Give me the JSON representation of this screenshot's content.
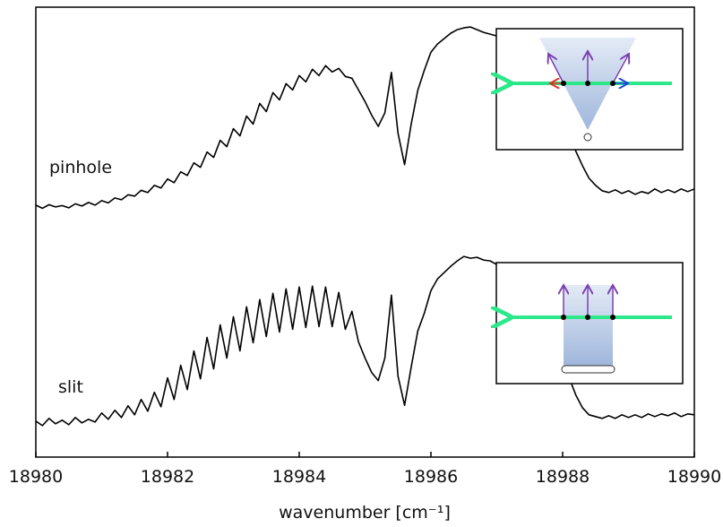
{
  "chart_data": {
    "type": "line",
    "x_label": "wavenumber [cm⁻¹]",
    "x": [
      18980,
      18980.1,
      18980.2,
      18980.3,
      18980.4,
      18980.5,
      18980.6,
      18980.7,
      18980.8,
      18980.9,
      18981,
      18981.1,
      18981.2,
      18981.3,
      18981.4,
      18981.5,
      18981.6,
      18981.7,
      18981.8,
      18981.9,
      18982,
      18982.1,
      18982.2,
      18982.3,
      18982.4,
      18982.5,
      18982.6,
      18982.7,
      18982.8,
      18982.9,
      18983,
      18983.1,
      18983.2,
      18983.3,
      18983.4,
      18983.5,
      18983.6,
      18983.7,
      18983.8,
      18983.9,
      18984,
      18984.1,
      18984.2,
      18984.3,
      18984.4,
      18984.5,
      18984.6,
      18984.7,
      18984.8,
      18984.9,
      18985,
      18985.1,
      18985.2,
      18985.3,
      18985.4,
      18985.5,
      18985.6,
      18985.7,
      18985.8,
      18985.9,
      18986,
      18986.1,
      18986.2,
      18986.3,
      18986.4,
      18986.5,
      18986.6,
      18986.7,
      18986.8,
      18986.9,
      18987,
      18987.1,
      18987.2,
      18987.3,
      18987.4,
      18987.5,
      18987.6,
      18987.7,
      18987.8,
      18987.9,
      18988,
      18988.1,
      18988.2,
      18988.3,
      18988.4,
      18988.5,
      18988.6,
      18988.7,
      18988.8,
      18988.9,
      18989,
      18989.1,
      18989.2,
      18989.3,
      18989.4,
      18989.5,
      18989.6,
      18989.7,
      18989.8,
      18989.9,
      18990
    ],
    "series": [
      {
        "name": "pinhole",
        "color": "#000000",
        "values": [
          56.0,
          55.3,
          56.1,
          55.6,
          55.9,
          55.4,
          56.3,
          55.8,
          56.6,
          56.0,
          57.0,
          56.5,
          57.6,
          57.2,
          58.3,
          58.0,
          59.3,
          58.8,
          60.4,
          59.8,
          61.8,
          61.0,
          63.4,
          62.6,
          65.4,
          64.4,
          67.8,
          66.6,
          70.4,
          69.0,
          73.0,
          71.4,
          75.8,
          74.0,
          78.6,
          76.8,
          81.0,
          79.4,
          83.0,
          81.6,
          84.8,
          83.4,
          86.2,
          84.8,
          87.0,
          85.6,
          86.4,
          84.6,
          84.2,
          81.6,
          79.0,
          76.0,
          73.5,
          76.5,
          85.5,
          72.0,
          65.0,
          74.0,
          81.5,
          86.0,
          90.0,
          91.8,
          93.0,
          94.2,
          95.0,
          95.4,
          95.6,
          95.0,
          94.4,
          94.0,
          93.6,
          93.0,
          92.2,
          91.4,
          90.2,
          88.8,
          87.0,
          84.8,
          82.0,
          79.0,
          76.0,
          72.0,
          68.0,
          64.8,
          62.0,
          60.4,
          59.2,
          58.8,
          59.4,
          58.6,
          59.2,
          58.4,
          59.0,
          58.6,
          59.6,
          58.8,
          59.4,
          58.8,
          59.6,
          59.0,
          59.6
        ]
      },
      {
        "name": "slit",
        "color": "#000000",
        "values": [
          8.0,
          7.0,
          8.6,
          7.4,
          8.2,
          7.2,
          8.8,
          7.6,
          8.4,
          7.8,
          9.8,
          8.4,
          10.4,
          8.8,
          11.4,
          9.4,
          12.8,
          10.2,
          14.4,
          11.2,
          17.6,
          12.8,
          20.4,
          15.0,
          23.6,
          17.4,
          26.6,
          19.6,
          29.4,
          22.0,
          31.2,
          23.6,
          33.4,
          25.4,
          35.0,
          26.8,
          36.4,
          27.8,
          37.4,
          28.4,
          37.8,
          28.8,
          38.0,
          29.0,
          37.8,
          29.0,
          36.6,
          28.4,
          32.4,
          25.6,
          22.0,
          18.8,
          17.0,
          22.0,
          36.0,
          18.0,
          11.5,
          20.0,
          28.0,
          32.0,
          37.0,
          39.6,
          41.0,
          42.4,
          43.6,
          44.6,
          44.2,
          44.4,
          43.8,
          43.6,
          42.8,
          41.4,
          40.0,
          38.6,
          37.0,
          35.4,
          33.0,
          30.4,
          27.4,
          24.8,
          21.8,
          17.6,
          13.8,
          11.0,
          9.4,
          9.0,
          8.6,
          9.2,
          8.6,
          9.4,
          8.8,
          9.4,
          8.8,
          9.6,
          9.0,
          9.6,
          9.2,
          9.8,
          9.0,
          9.6,
          9.4
        ]
      }
    ],
    "xlim": [
      18980,
      18990
    ],
    "xticks": [
      18980,
      18982,
      18984,
      18986,
      18988,
      18990
    ],
    "ylim": [
      0,
      100
    ]
  }
}
